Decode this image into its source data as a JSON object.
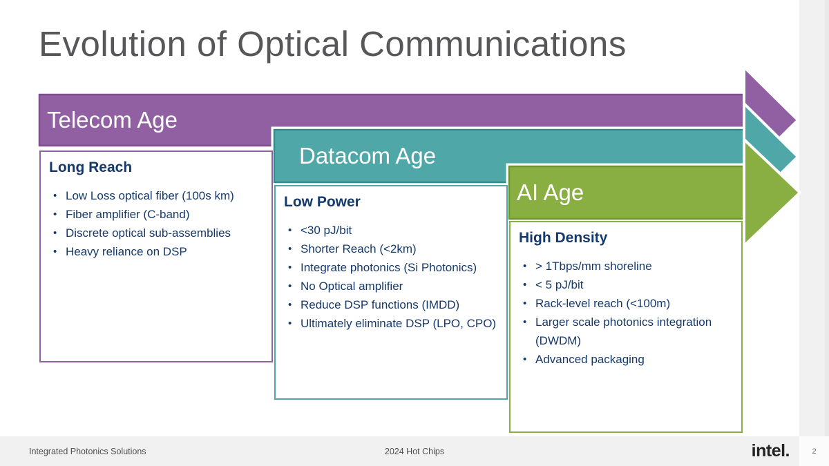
{
  "slide": {
    "title": "Evolution of Optical Communications",
    "ages": [
      {
        "banner": "Telecom Age",
        "heading": "Long Reach",
        "bullets": [
          "Low Loss optical fiber (100s km)",
          "Fiber amplifier (C-band)",
          "Discrete optical sub-assemblies",
          "Heavy reliance on DSP"
        ]
      },
      {
        "banner": "Datacom Age",
        "heading": "Low Power",
        "bullets": [
          "<30 pJ/bit",
          "Shorter Reach (<2km)",
          "Integrate photonics (Si Photonics)",
          "No Optical amplifier",
          "Reduce DSP functions (IMDD)",
          "Ultimately eliminate DSP (LPO, CPO)"
        ]
      },
      {
        "banner": "AI Age",
        "heading": "High Density",
        "bullets": [
          "> 1Tbps/mm shoreline",
          "< 5 pJ/bit",
          "Rack-level reach (<100m)",
          "Larger scale photonics integration (DWDM)",
          "Advanced packaging"
        ]
      }
    ],
    "footer": {
      "left": "Integrated Photonics Solutions",
      "center": "2024 Hot Chips",
      "logo": "intel.",
      "page_number": "2"
    }
  },
  "colors": {
    "purple": "#9160A2",
    "purple-dark": "#7C4E8B",
    "teal": "#4FA7A7",
    "teal-dark": "#37898C",
    "green": "#89AE42",
    "green-dark": "#6E9434",
    "navy": "#16396B",
    "title-gray": "#57575A",
    "footer-bg": "#F1F1F1",
    "footer-text": "#4F4F4F",
    "logo-dark": "#232323"
  }
}
